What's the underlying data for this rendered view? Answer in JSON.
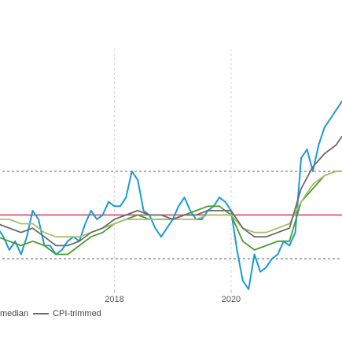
{
  "chart_data": {
    "type": "line",
    "title": "",
    "xlabel": "",
    "ylabel": "",
    "xlim": [
      2016.0,
      2021.9
    ],
    "ylim": [
      0.3,
      5.8
    ],
    "grid": "vertical dashed",
    "x_ticks": [
      {
        "value": 2018,
        "label": "2018"
      },
      {
        "value": 2020,
        "label": "2020"
      }
    ],
    "reference_lines": [
      {
        "y": 3.0,
        "color": "#9a9a9a",
        "style": "dotted"
      },
      {
        "y": 2.0,
        "color": "#d4486e",
        "style": "solid"
      },
      {
        "y": 1.0,
        "color": "#9a9a9a",
        "style": "dotted"
      }
    ],
    "series": [
      {
        "color": "#1a9ad6",
        "x": [
          2016.0,
          2016.1,
          2016.2,
          2016.3,
          2016.4,
          2016.5,
          2016.6,
          2016.7,
          2016.8,
          2016.9,
          2017.0,
          2017.1,
          2017.2,
          2017.3,
          2017.4,
          2017.5,
          2017.6,
          2017.7,
          2017.8,
          2017.9,
          2018.0,
          2018.1,
          2018.2,
          2018.3,
          2018.4,
          2018.5,
          2018.6,
          2018.7,
          2018.8,
          2018.9,
          2019.0,
          2019.1,
          2019.2,
          2019.3,
          2019.4,
          2019.5,
          2019.6,
          2019.7,
          2019.8,
          2019.9,
          2020.0,
          2020.1,
          2020.2,
          2020.3,
          2020.4,
          2020.5,
          2020.6,
          2020.7,
          2020.8,
          2020.9,
          2021.0,
          2021.1,
          2021.2,
          2021.3,
          2021.4,
          2021.5,
          2021.6,
          2021.7,
          2021.8,
          2021.9
        ],
        "values": [
          1.7,
          1.5,
          1.2,
          1.4,
          1.1,
          1.5,
          2.1,
          1.9,
          1.3,
          1.3,
          1.1,
          1.2,
          1.4,
          1.5,
          1.4,
          1.8,
          2.1,
          1.9,
          2.0,
          2.3,
          2.2,
          2.2,
          2.4,
          3.0,
          2.8,
          2.1,
          2.0,
          1.7,
          1.5,
          1.7,
          1.9,
          2.2,
          2.4,
          2.1,
          1.9,
          1.9,
          2.1,
          2.2,
          2.4,
          2.3,
          2.1,
          1.2,
          0.5,
          0.3,
          1.1,
          0.7,
          0.8,
          1.0,
          1.1,
          1.4,
          1.3,
          1.6,
          3.3,
          3.5,
          3.0,
          3.6,
          4.0,
          4.2,
          4.4,
          4.6
        ]
      },
      {
        "color": "#4a9c2f",
        "x": [
          2016.0,
          2016.2,
          2016.4,
          2016.6,
          2016.8,
          2017.0,
          2017.2,
          2017.4,
          2017.6,
          2017.8,
          2018.0,
          2018.2,
          2018.4,
          2018.6,
          2018.8,
          2019.0,
          2019.2,
          2019.4,
          2019.6,
          2019.8,
          2020.0,
          2020.2,
          2020.4,
          2020.6,
          2020.8,
          2021.0,
          2021.2,
          2021.4,
          2021.6,
          2021.8,
          2021.9
        ],
        "values": [
          1.5,
          1.4,
          1.3,
          1.4,
          1.3,
          1.1,
          1.1,
          1.3,
          1.5,
          1.6,
          1.8,
          1.9,
          2.0,
          1.9,
          1.9,
          1.9,
          2.0,
          2.1,
          2.2,
          2.2,
          2.0,
          1.4,
          1.2,
          1.3,
          1.4,
          1.4,
          2.3,
          2.6,
          2.9,
          3.0,
          3.0
        ]
      },
      {
        "color": "#a9c06b",
        "x": [
          2016.0,
          2016.2,
          2016.4,
          2016.6,
          2016.8,
          2017.0,
          2017.2,
          2017.4,
          2017.6,
          2017.8,
          2018.0,
          2018.2,
          2018.4,
          2018.6,
          2018.8,
          2019.0,
          2019.2,
          2019.4,
          2019.6,
          2019.8,
          2020.0,
          2020.2,
          2020.4,
          2020.6,
          2020.8,
          2021.0,
          2021.2,
          2021.4,
          2021.6,
          2021.8,
          2021.9
        ],
        "values": [
          1.9,
          1.9,
          1.8,
          1.8,
          1.6,
          1.5,
          1.5,
          1.5,
          1.6,
          1.7,
          1.8,
          1.9,
          1.9,
          1.9,
          1.9,
          1.9,
          1.9,
          1.9,
          2.0,
          2.0,
          2.0,
          1.7,
          1.6,
          1.6,
          1.7,
          1.8,
          2.3,
          2.7,
          2.9,
          3.0,
          3.0
        ]
      },
      {
        "name": "CPI-trimmed",
        "color": "#6b6b6b",
        "x": [
          2016.0,
          2016.2,
          2016.4,
          2016.6,
          2016.8,
          2017.0,
          2017.2,
          2017.4,
          2017.6,
          2017.8,
          2018.0,
          2018.2,
          2018.4,
          2018.6,
          2018.8,
          2019.0,
          2019.2,
          2019.4,
          2019.6,
          2019.8,
          2020.0,
          2020.2,
          2020.4,
          2020.6,
          2020.8,
          2021.0,
          2021.2,
          2021.4,
          2021.6,
          2021.8,
          2021.9
        ],
        "values": [
          1.8,
          1.7,
          1.6,
          1.7,
          1.5,
          1.3,
          1.3,
          1.4,
          1.6,
          1.7,
          1.9,
          2.0,
          2.1,
          2.0,
          2.0,
          1.9,
          2.0,
          2.0,
          2.1,
          2.1,
          2.1,
          1.7,
          1.5,
          1.5,
          1.6,
          1.7,
          2.6,
          3.1,
          3.4,
          3.6,
          3.8
        ]
      }
    ],
    "legend": {
      "position": "bottom-left",
      "entries": [
        {
          "label": "median",
          "color": "#a9c06b",
          "swatch": false
        },
        {
          "label": "CPI-trimmed",
          "color": "#6b6b6b",
          "swatch": true
        }
      ]
    }
  }
}
